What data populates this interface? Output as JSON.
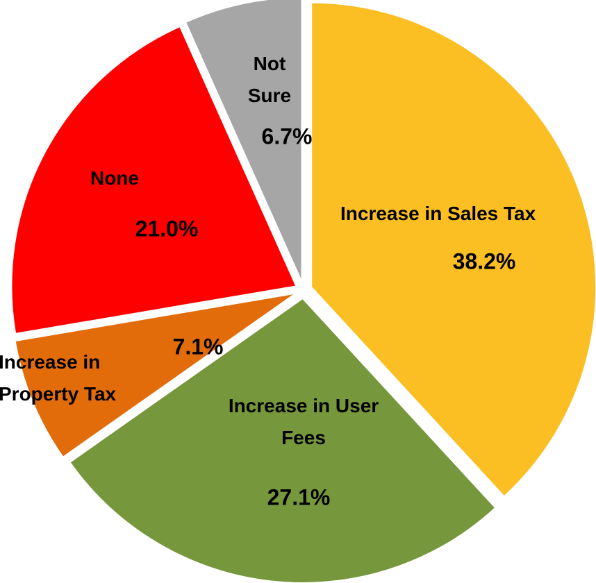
{
  "chart_data": {
    "type": "pie",
    "categories": [
      "Increase in Sales Tax",
      "Increase in User Fees",
      "Increase in Property Tax",
      "None",
      "Not Sure"
    ],
    "values": [
      38.2,
      27.1,
      7.1,
      21.0,
      6.7
    ],
    "value_labels": [
      "38.2%",
      "27.1%",
      "7.1%",
      "21.0%",
      "6.7%"
    ],
    "colors": [
      "#fbbf24",
      "#77973d",
      "#e36c0a",
      "#ff0000",
      "#a6a6a6"
    ]
  }
}
